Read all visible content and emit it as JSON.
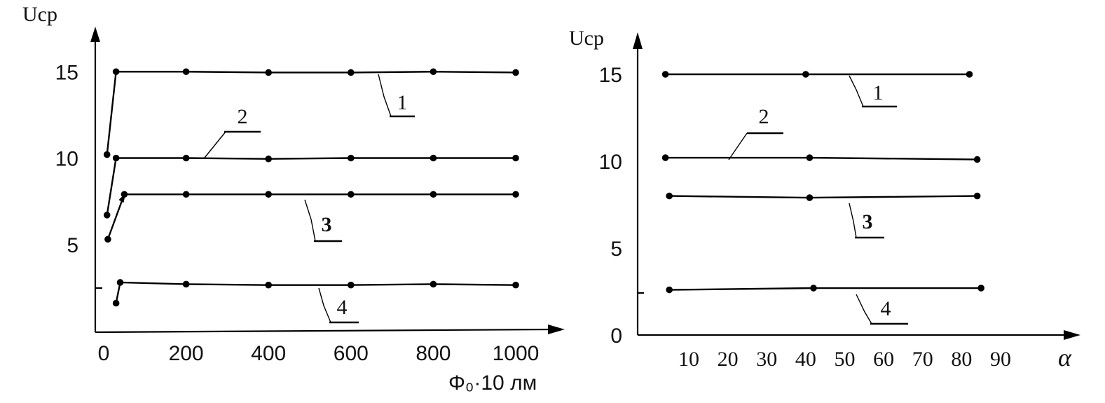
{
  "chart_data": [
    {
      "type": "line",
      "ylabel": "Ucp",
      "xlabel": "Φ₀·10  лм",
      "xlim": [
        0,
        1000
      ],
      "ylim": [
        0,
        16
      ],
      "x_ticks": [
        "0",
        "200",
        "400",
        "600",
        "800",
        "1000"
      ],
      "y_ticks": [
        "5",
        "10",
        "15"
      ],
      "series": [
        {
          "name": "1",
          "x": [
            8,
            30,
            200,
            400,
            600,
            800,
            1000
          ],
          "y": [
            10.2,
            15.0,
            15.0,
            14.95,
            14.95,
            15.0,
            14.95
          ]
        },
        {
          "name": "2",
          "x": [
            8,
            30,
            200,
            400,
            600,
            800,
            1000
          ],
          "y": [
            6.7,
            10.0,
            10.0,
            9.95,
            10.0,
            10.0,
            10.0
          ]
        },
        {
          "name": "3",
          "x": [
            10,
            50,
            200,
            400,
            600,
            800,
            1000
          ],
          "y": [
            5.3,
            7.9,
            7.9,
            7.9,
            7.9,
            7.9,
            7.9
          ]
        },
        {
          "name": "4",
          "x": [
            30,
            40,
            200,
            400,
            600,
            800,
            1000
          ],
          "y": [
            1.6,
            2.8,
            2.7,
            2.65,
            2.65,
            2.7,
            2.65
          ]
        }
      ],
      "annotations": [
        "1",
        "2",
        "3",
        "4"
      ]
    },
    {
      "type": "line",
      "ylabel": "Ucp",
      "xlabel": "α",
      "xlim": [
        0,
        100
      ],
      "ylim": [
        0,
        16
      ],
      "x_ticks": [
        "10",
        "20",
        "30",
        "40",
        "50",
        "60",
        "70",
        "80",
        "90"
      ],
      "y_ticks": [
        "0",
        "5",
        "10",
        "15"
      ],
      "series": [
        {
          "name": "1",
          "x": [
            4,
            40,
            82
          ],
          "y": [
            15.0,
            15.0,
            15.0
          ]
        },
        {
          "name": "2",
          "x": [
            4,
            41,
            84
          ],
          "y": [
            10.2,
            10.2,
            10.1
          ]
        },
        {
          "name": "3",
          "x": [
            5,
            41,
            84
          ],
          "y": [
            8.0,
            7.9,
            8.0
          ]
        },
        {
          "name": "4",
          "x": [
            5,
            42,
            85
          ],
          "y": [
            2.6,
            2.7,
            2.7
          ]
        }
      ],
      "annotations": [
        "1",
        "2",
        "3",
        "4"
      ]
    }
  ]
}
